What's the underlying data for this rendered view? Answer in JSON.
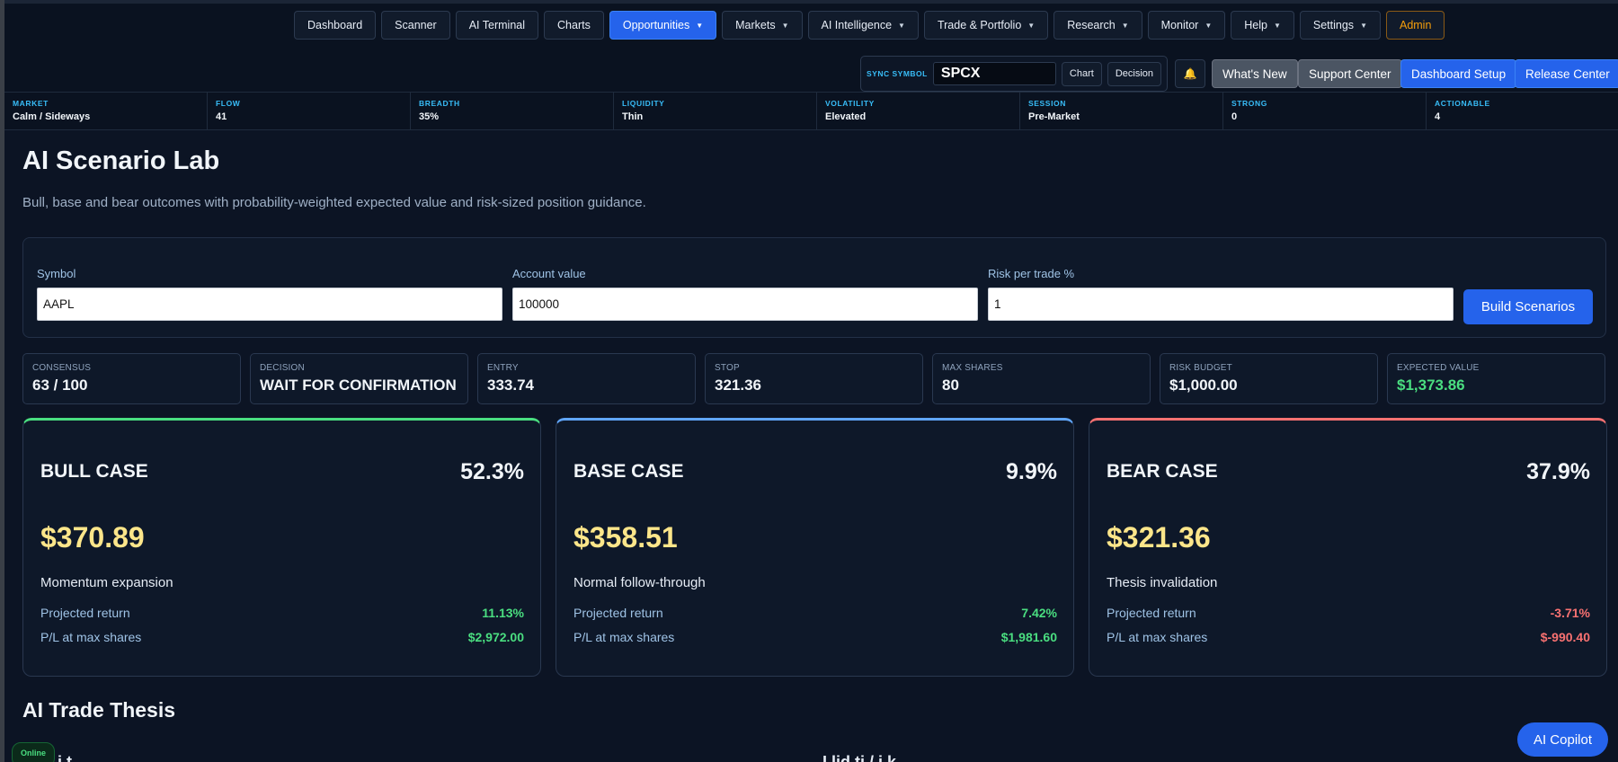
{
  "nav": {
    "items": [
      {
        "label": "Dashboard",
        "dropdown": false,
        "active": false
      },
      {
        "label": "Scanner",
        "dropdown": false,
        "active": false
      },
      {
        "label": "AI Terminal",
        "dropdown": false,
        "active": false
      },
      {
        "label": "Charts",
        "dropdown": false,
        "active": false
      },
      {
        "label": "Opportunities",
        "dropdown": true,
        "active": true
      },
      {
        "label": "Markets",
        "dropdown": true,
        "active": false
      },
      {
        "label": "AI Intelligence",
        "dropdown": true,
        "active": false
      },
      {
        "label": "Trade & Portfolio",
        "dropdown": true,
        "active": false
      },
      {
        "label": "Research",
        "dropdown": true,
        "active": false
      },
      {
        "label": "Monitor",
        "dropdown": true,
        "active": false
      },
      {
        "label": "Help",
        "dropdown": true,
        "active": false
      },
      {
        "label": "Settings",
        "dropdown": true,
        "active": false
      },
      {
        "label": "Admin",
        "dropdown": false,
        "active": false
      }
    ]
  },
  "sync": {
    "label": "SYNC SYMBOL",
    "value": "SPCX",
    "chart_label": "Chart",
    "decision_label": "Decision"
  },
  "header_buttons": {
    "bell_icon": "bell-icon",
    "whats_new": "What's New",
    "support_center": "Support Center",
    "dashboard_setup": "Dashboard Setup",
    "release_center": "Release Center"
  },
  "status": [
    {
      "label": "MARKET",
      "value": "Calm / Sideways"
    },
    {
      "label": "FLOW",
      "value": "41"
    },
    {
      "label": "BREADTH",
      "value": "35%"
    },
    {
      "label": "LIQUIDITY",
      "value": "Thin"
    },
    {
      "label": "VOLATILITY",
      "value": "Elevated"
    },
    {
      "label": "SESSION",
      "value": "Pre-Market"
    },
    {
      "label": "STRONG",
      "value": "0"
    },
    {
      "label": "ACTIONABLE",
      "value": "4"
    }
  ],
  "page": {
    "title": "AI Scenario Lab",
    "subtitle": "Bull, base and bear outcomes with probability-weighted expected value and risk-sized position guidance."
  },
  "form": {
    "symbol_label": "Symbol",
    "symbol_value": "AAPL",
    "account_label": "Account value",
    "account_value": "100000",
    "risk_label": "Risk per trade %",
    "risk_value": "1",
    "build_label": "Build Scenarios"
  },
  "metrics": [
    {
      "label": "CONSENSUS",
      "value": "63 / 100"
    },
    {
      "label": "DECISION",
      "value": "WAIT FOR CONFIRMATION"
    },
    {
      "label": "ENTRY",
      "value": "333.74"
    },
    {
      "label": "STOP",
      "value": "321.36"
    },
    {
      "label": "MAX SHARES",
      "value": "80"
    },
    {
      "label": "RISK BUDGET",
      "value": "$1,000.00"
    },
    {
      "label": "EXPECTED VALUE",
      "value": "$1,373.86"
    }
  ],
  "cases": [
    {
      "name": "BULL CASE",
      "prob": "52.3%",
      "price": "$370.89",
      "desc": "Momentum expansion",
      "return_label": "Projected return",
      "return_value": "11.13%",
      "pl_label": "P/L at max shares",
      "pl_value": "$2,972.00",
      "tone": "pos",
      "accent": "#4ade80"
    },
    {
      "name": "BASE CASE",
      "prob": "9.9%",
      "price": "$358.51",
      "desc": "Normal follow-through",
      "return_label": "Projected return",
      "return_value": "7.42%",
      "pl_label": "P/L at max shares",
      "pl_value": "$1,981.60",
      "tone": "pos",
      "accent": "#60a5fa"
    },
    {
      "name": "BEAR CASE",
      "prob": "37.9%",
      "price": "$321.36",
      "desc": "Thesis invalidation",
      "return_label": "Projected return",
      "return_value": "-3.71%",
      "pl_label": "P/L at max shares",
      "pl_value": "$-990.40",
      "tone": "neg",
      "accent": "#f87171"
    }
  ],
  "thesis": {
    "title": "AI Trade Thesis",
    "col1_cut": "t    t    i   t",
    "col2_cut": "I    lid ti   / i k"
  },
  "footer": {
    "online": "Online",
    "copilot": "AI Copilot"
  }
}
